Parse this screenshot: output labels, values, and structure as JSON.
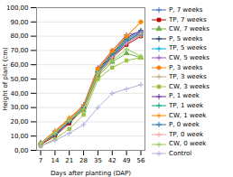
{
  "chart_data": {
    "type": "line",
    "xlabel": "Days after planting (DAP)",
    "ylabel": "Height of plant (cm)",
    "x": [
      7,
      14,
      21,
      28,
      35,
      42,
      49,
      56
    ],
    "xlim": [
      5,
      58
    ],
    "xticks": [
      7,
      14,
      21,
      28,
      35,
      42,
      49,
      56
    ],
    "ylim": [
      0,
      100
    ],
    "yticks": [
      {
        "value": 0,
        "label": "0,00"
      },
      {
        "value": 10,
        "label": "10,00"
      },
      {
        "value": 20,
        "label": "20,00"
      },
      {
        "value": 30,
        "label": "30,00"
      },
      {
        "value": 40,
        "label": "40,00"
      },
      {
        "value": 50,
        "label": "50,00"
      },
      {
        "value": 60,
        "label": "60,00"
      },
      {
        "value": 70,
        "label": "70,00"
      },
      {
        "value": 80,
        "label": "80,00"
      },
      {
        "value": 90,
        "label": "90,00"
      },
      {
        "value": 100,
        "label": "100,00"
      }
    ],
    "grid": "y",
    "legend": "right",
    "series": [
      {
        "name": "P, 7 weeks",
        "color": "#4472C4",
        "marker": "plus",
        "values": [
          5,
          11,
          20,
          30,
          55,
          67,
          78,
          83
        ]
      },
      {
        "name": "TP, 7 weeks",
        "color": "#C00000",
        "marker": "square",
        "values": [
          4,
          10,
          19,
          29,
          53,
          65,
          74,
          80
        ]
      },
      {
        "name": "CW, 7 weeks",
        "color": "#70AD47",
        "marker": "triangle",
        "values": [
          5,
          12,
          21,
          28,
          52,
          62,
          68,
          65
        ]
      },
      {
        "name": "P, 5 weeks",
        "color": "#1F3864",
        "marker": "plus",
        "values": [
          5,
          11,
          20,
          30,
          56,
          68,
          79,
          84
        ]
      },
      {
        "name": "TP, 5 weeks",
        "color": "#00B0F0",
        "marker": "plus",
        "values": [
          5,
          12,
          21,
          29,
          54,
          66,
          76,
          81
        ]
      },
      {
        "name": "CW, 5 weeks",
        "color": "#9B59B6",
        "marker": "plus",
        "values": [
          5,
          13,
          22,
          32,
          58,
          70,
          81,
          83
        ]
      },
      {
        "name": "P, 3 weeks",
        "color": "#FF7F00",
        "marker": "circle",
        "values": [
          5,
          13,
          22,
          31,
          57,
          70,
          80,
          90
        ]
      },
      {
        "name": "TP, 3 weeks",
        "color": "#C8A882",
        "marker": "plus",
        "values": [
          5,
          14,
          22,
          30,
          55,
          67,
          77,
          80
        ]
      },
      {
        "name": "CW, 3 weeks",
        "color": "#9DC343",
        "marker": "square",
        "values": [
          3,
          8,
          15,
          25,
          50,
          58,
          63,
          65
        ]
      },
      {
        "name": "P, 1 week",
        "color": "#7030A0",
        "marker": "plus",
        "values": [
          5,
          12,
          21,
          29,
          54,
          66,
          75,
          82
        ]
      },
      {
        "name": "TP, 1 week",
        "color": "#17A589",
        "marker": "plus",
        "values": [
          5,
          12,
          21,
          30,
          55,
          67,
          77,
          82
        ]
      },
      {
        "name": "CW, 1 week",
        "color": "#FF8C00",
        "marker": "plus",
        "values": [
          5,
          13,
          23,
          31,
          57,
          69,
          80,
          90
        ]
      },
      {
        "name": "P, 0 week",
        "color": "#2E75B6",
        "marker": "plus",
        "values": [
          5,
          11,
          20,
          30,
          54,
          66,
          76,
          83
        ]
      },
      {
        "name": "TP, 0 week",
        "color": "#F4A4A4",
        "marker": "plus",
        "values": [
          5,
          12,
          21,
          29,
          54,
          65,
          75,
          82
        ]
      },
      {
        "name": "CW, 0 week",
        "color": "#92D050",
        "marker": "plus",
        "values": [
          5,
          12,
          21,
          29,
          54,
          63,
          71,
          66
        ]
      },
      {
        "name": "Control",
        "color": "#B0B0E0",
        "marker": "plus",
        "values": [
          3,
          7,
          12,
          18,
          30,
          40,
          43,
          46
        ]
      }
    ]
  }
}
